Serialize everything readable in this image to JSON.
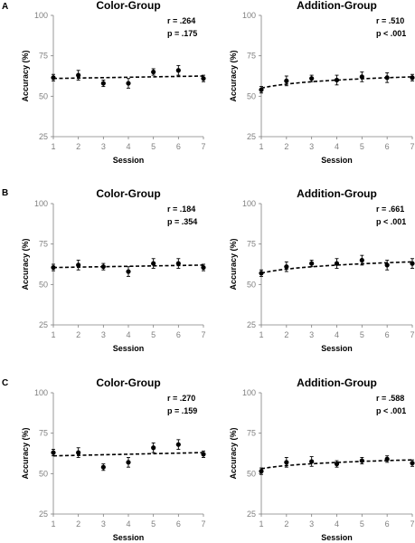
{
  "panels": [
    {
      "letter": "A"
    },
    {
      "letter": "B"
    },
    {
      "letter": "C"
    }
  ],
  "chart_data": [
    {
      "type": "scatter",
      "title": "Color-Group",
      "xlabel": "Session",
      "ylabel": "Accuracy (%)",
      "x": [
        1,
        2,
        3,
        4,
        5,
        6,
        7
      ],
      "xlim": [
        1,
        7
      ],
      "ylim": [
        25,
        100
      ],
      "yticks": [
        25,
        50,
        75,
        100
      ],
      "values": [
        61.5,
        63,
        58,
        58,
        65,
        66,
        61
      ],
      "errors": [
        2,
        3,
        2,
        3,
        2,
        3,
        2
      ],
      "trend": "dashed",
      "trend_line": [
        61,
        62.5
      ],
      "annotations": [
        "r = .264",
        "p = .175"
      ]
    },
    {
      "type": "scatter",
      "title": "Addition-Group",
      "xlabel": "Session",
      "ylabel": "Accuracy (%)",
      "x": [
        1,
        2,
        3,
        4,
        5,
        6,
        7
      ],
      "xlim": [
        1,
        7
      ],
      "ylim": [
        25,
        100
      ],
      "yticks": [
        25,
        50,
        75,
        100
      ],
      "values": [
        54,
        59.5,
        61,
        60,
        62,
        61.5,
        61.5
      ],
      "errors": [
        2,
        3,
        2,
        3,
        3,
        3,
        2
      ],
      "trend": "log-dashed",
      "trend_line": [
        55,
        62
      ],
      "annotations": [
        "r = .510",
        "p < .001"
      ]
    },
    {
      "type": "scatter",
      "title": "Color-Group",
      "xlabel": "Session",
      "ylabel": "Accuracy (%)",
      "x": [
        1,
        2,
        3,
        4,
        5,
        6,
        7
      ],
      "xlim": [
        1,
        7
      ],
      "ylim": [
        25,
        100
      ],
      "yticks": [
        25,
        50,
        75,
        100
      ],
      "values": [
        60.5,
        62,
        61,
        58,
        63,
        63,
        60.5
      ],
      "errors": [
        2,
        3,
        2,
        3,
        3,
        3,
        2
      ],
      "trend": "dashed",
      "trend_line": [
        60.5,
        62
      ],
      "annotations": [
        "r = .184",
        "p = .354"
      ]
    },
    {
      "type": "scatter",
      "title": "Addition-Group",
      "xlabel": "Session",
      "ylabel": "Accuracy (%)",
      "x": [
        1,
        2,
        3,
        4,
        5,
        6,
        7
      ],
      "xlim": [
        1,
        7
      ],
      "ylim": [
        25,
        100
      ],
      "yticks": [
        25,
        50,
        75,
        100
      ],
      "values": [
        57,
        61,
        63,
        63,
        65,
        62,
        63
      ],
      "errors": [
        2,
        3,
        2,
        3,
        3,
        3,
        3
      ],
      "trend": "log-dashed",
      "trend_line": [
        57,
        64
      ],
      "annotations": [
        "r = .661",
        "p < .001"
      ]
    },
    {
      "type": "scatter",
      "title": "Color-Group",
      "xlabel": "Session",
      "ylabel": "Accuracy (%)",
      "x": [
        1,
        2,
        3,
        4,
        5,
        6,
        7
      ],
      "xlim": [
        1,
        7
      ],
      "ylim": [
        25,
        100
      ],
      "yticks": [
        25,
        50,
        75,
        100
      ],
      "values": [
        63,
        63,
        54,
        57,
        66,
        68,
        62
      ],
      "errors": [
        2,
        3,
        2,
        3,
        3,
        3,
        2
      ],
      "trend": "dashed",
      "trend_line": [
        61,
        63
      ],
      "annotations": [
        "r = .270",
        "p = .159"
      ]
    },
    {
      "type": "scatter",
      "title": "Addition-Group",
      "xlabel": "Session",
      "ylabel": "Accuracy (%)",
      "x": [
        1,
        2,
        3,
        4,
        5,
        6,
        7
      ],
      "xlim": [
        1,
        7
      ],
      "ylim": [
        25,
        100
      ],
      "yticks": [
        25,
        50,
        75,
        100
      ],
      "values": [
        51.5,
        57,
        57.5,
        56,
        58,
        59,
        56.5
      ],
      "errors": [
        2,
        3,
        3,
        2,
        2,
        2,
        2
      ],
      "trend": "log-dashed",
      "trend_line": [
        53,
        58.5
      ],
      "annotations": [
        "r = .588",
        "p < .001"
      ]
    }
  ]
}
